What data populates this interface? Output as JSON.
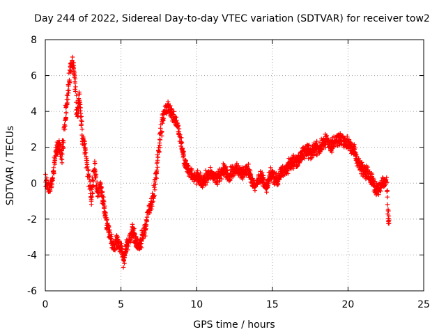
{
  "chart_data": {
    "type": "scatter",
    "title": "Day 244 of 2022, Sidereal Day-to-day VTEC variation (SDTVAR) for receiver tow2",
    "xlabel": "GPS time / hours",
    "ylabel": "SDTVAR / TECUs",
    "xlim": [
      0,
      25
    ],
    "ylim": [
      -6,
      8
    ],
    "xticks": [
      0,
      5,
      10,
      15,
      20,
      25
    ],
    "yticks": [
      -6,
      -4,
      -2,
      0,
      2,
      4,
      6,
      8
    ],
    "grid": true,
    "marker": "+",
    "color": "#ff0000",
    "series": [
      {
        "name": "SDTVAR",
        "trend": [
          [
            0.0,
            0.1
          ],
          [
            0.25,
            -0.3
          ],
          [
            0.5,
            0.2
          ],
          [
            0.7,
            1.6
          ],
          [
            0.9,
            2.2
          ],
          [
            1.1,
            1.5
          ],
          [
            1.25,
            3.0
          ],
          [
            1.45,
            4.6
          ],
          [
            1.65,
            6.4
          ],
          [
            1.8,
            6.7
          ],
          [
            1.95,
            6.0
          ],
          [
            2.1,
            3.6
          ],
          [
            2.25,
            4.8
          ],
          [
            2.45,
            2.6
          ],
          [
            2.65,
            1.8
          ],
          [
            2.85,
            0.4
          ],
          [
            3.05,
            -0.8
          ],
          [
            3.25,
            0.9
          ],
          [
            3.45,
            -0.6
          ],
          [
            3.65,
            -0.2
          ],
          [
            3.8,
            -0.9
          ],
          [
            3.95,
            -1.7
          ],
          [
            4.15,
            -2.6
          ],
          [
            4.35,
            -3.1
          ],
          [
            4.55,
            -3.6
          ],
          [
            4.75,
            -3.2
          ],
          [
            5.0,
            -3.6
          ],
          [
            5.15,
            -4.3
          ],
          [
            5.35,
            -3.6
          ],
          [
            5.55,
            -3.1
          ],
          [
            5.75,
            -2.6
          ],
          [
            6.0,
            -3.3
          ],
          [
            6.2,
            -3.6
          ],
          [
            6.4,
            -3.0
          ],
          [
            6.6,
            -2.6
          ],
          [
            6.75,
            -1.8
          ],
          [
            6.95,
            -1.3
          ],
          [
            7.15,
            -0.7
          ],
          [
            7.35,
            0.7
          ],
          [
            7.55,
            2.3
          ],
          [
            7.75,
            3.6
          ],
          [
            7.95,
            4.1
          ],
          [
            8.15,
            4.2
          ],
          [
            8.35,
            3.9
          ],
          [
            8.55,
            3.7
          ],
          [
            8.75,
            3.2
          ],
          [
            8.95,
            2.3
          ],
          [
            9.15,
            1.4
          ],
          [
            9.35,
            0.9
          ],
          [
            9.6,
            0.5
          ],
          [
            9.85,
            0.2
          ],
          [
            10.1,
            0.4
          ],
          [
            10.35,
            0.0
          ],
          [
            10.6,
            0.3
          ],
          [
            10.85,
            0.6
          ],
          [
            11.1,
            0.4
          ],
          [
            11.35,
            0.2
          ],
          [
            11.6,
            0.5
          ],
          [
            11.85,
            0.9
          ],
          [
            12.1,
            0.2
          ],
          [
            12.35,
            0.7
          ],
          [
            12.6,
            0.8
          ],
          [
            12.85,
            0.6
          ],
          [
            13.1,
            0.5
          ],
          [
            13.35,
            0.9
          ],
          [
            13.6,
            0.2
          ],
          [
            13.85,
            -0.2
          ],
          [
            14.1,
            0.3
          ],
          [
            14.35,
            0.2
          ],
          [
            14.6,
            -0.4
          ],
          [
            14.85,
            0.5
          ],
          [
            15.1,
            0.3
          ],
          [
            15.35,
            0.1
          ],
          [
            15.6,
            0.7
          ],
          [
            15.85,
            0.6
          ],
          [
            16.1,
            1.0
          ],
          [
            16.35,
            1.2
          ],
          [
            16.6,
            1.1
          ],
          [
            16.85,
            1.5
          ],
          [
            17.1,
            1.7
          ],
          [
            17.35,
            1.8
          ],
          [
            17.6,
            1.6
          ],
          [
            17.85,
            2.0
          ],
          [
            18.1,
            1.9
          ],
          [
            18.35,
            2.2
          ],
          [
            18.6,
            2.4
          ],
          [
            18.85,
            2.0
          ],
          [
            19.1,
            2.3
          ],
          [
            19.35,
            2.5
          ],
          [
            19.6,
            2.4
          ],
          [
            19.85,
            2.3
          ],
          [
            20.1,
            2.1
          ],
          [
            20.35,
            1.9
          ],
          [
            20.6,
            1.3
          ],
          [
            20.85,
            0.9
          ],
          [
            21.1,
            0.7
          ],
          [
            21.35,
            0.5
          ],
          [
            21.6,
            0.2
          ],
          [
            21.85,
            -0.4
          ],
          [
            22.1,
            -0.2
          ],
          [
            22.35,
            0.0
          ],
          [
            22.55,
            0.0
          ],
          [
            22.7,
            -2.1
          ]
        ]
      }
    ]
  }
}
